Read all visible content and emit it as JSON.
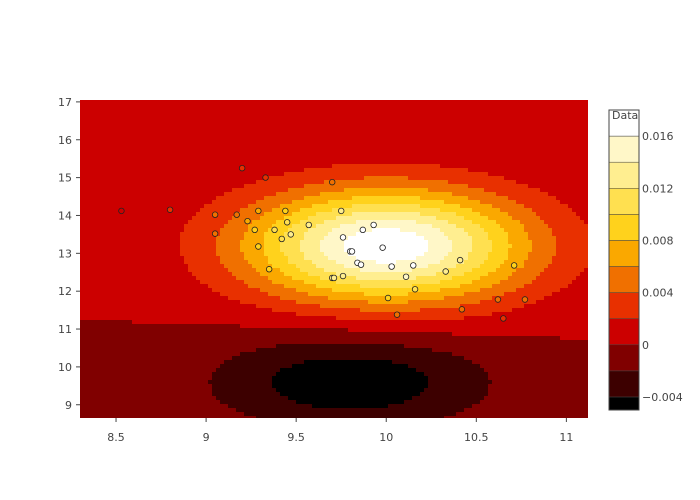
{
  "chart_data": {
    "type": "contour",
    "title": "",
    "xlabel": "",
    "ylabel": "",
    "xlim": [
      8.3,
      11.12
    ],
    "ylim": [
      8.65,
      17.05
    ],
    "x_ticks": [
      "8.5",
      "9",
      "9.5",
      "10",
      "10.5",
      "11"
    ],
    "y_ticks": [
      "9",
      "10",
      "11",
      "12",
      "13",
      "14",
      "15",
      "16",
      "17"
    ],
    "contour": {
      "surface": "2D Gaussian peak minus Gaussian trough",
      "peak_center": [
        10.0,
        13.2
      ],
      "peak_value": 0.0175,
      "trough_center": [
        9.8,
        9.6
      ],
      "trough_value": -0.0055,
      "levels": [
        -0.004,
        -0.002,
        0,
        0.002,
        0.004,
        0.006,
        0.008,
        0.01,
        0.012,
        0.014,
        0.016
      ],
      "colors": [
        "#000000",
        "#3d0000",
        "#800000",
        "#cc0000",
        "#e83000",
        "#f07000",
        "#faa800",
        "#ffd21c",
        "#ffe050",
        "#ffee90",
        "#fff7c8",
        "#ffffff"
      ]
    },
    "colorbar": {
      "title": "Data",
      "tick_labels": [
        "0.016",
        "0.012",
        "0.008",
        "0.004",
        "0",
        "−0.004"
      ],
      "tick_values": [
        0.016,
        0.012,
        0.008,
        0.004,
        0,
        -0.004
      ],
      "range": [
        -0.005,
        0.018
      ]
    },
    "scatter": {
      "points": [
        [
          8.53,
          14.12
        ],
        [
          8.8,
          14.15
        ],
        [
          9.05,
          14.02
        ],
        [
          9.05,
          13.52
        ],
        [
          9.17,
          14.02
        ],
        [
          9.2,
          15.25
        ],
        [
          9.23,
          13.85
        ],
        [
          9.27,
          13.62
        ],
        [
          9.29,
          14.12
        ],
        [
          9.29,
          13.18
        ],
        [
          9.33,
          15.0
        ],
        [
          9.35,
          12.58
        ],
        [
          9.38,
          13.62
        ],
        [
          9.42,
          13.38
        ],
        [
          9.44,
          14.12
        ],
        [
          9.45,
          13.82
        ],
        [
          9.47,
          13.5
        ],
        [
          9.57,
          13.75
        ],
        [
          9.7,
          14.88
        ],
        [
          9.7,
          12.35
        ],
        [
          9.71,
          12.35
        ],
        [
          9.75,
          14.12
        ],
        [
          9.76,
          13.42
        ],
        [
          9.76,
          12.4
        ],
        [
          9.8,
          13.05
        ],
        [
          9.81,
          13.05
        ],
        [
          9.84,
          12.75
        ],
        [
          9.86,
          12.7
        ],
        [
          9.87,
          13.62
        ],
        [
          9.93,
          13.75
        ],
        [
          9.98,
          13.15
        ],
        [
          10.01,
          11.82
        ],
        [
          10.03,
          12.65
        ],
        [
          10.06,
          11.38
        ],
        [
          10.11,
          12.38
        ],
        [
          10.15,
          12.68
        ],
        [
          10.16,
          12.05
        ],
        [
          10.33,
          12.52
        ],
        [
          10.41,
          12.82
        ],
        [
          10.42,
          11.52
        ],
        [
          10.62,
          11.78
        ],
        [
          10.65,
          11.28
        ],
        [
          10.71,
          12.68
        ],
        [
          10.77,
          11.78
        ]
      ]
    }
  }
}
